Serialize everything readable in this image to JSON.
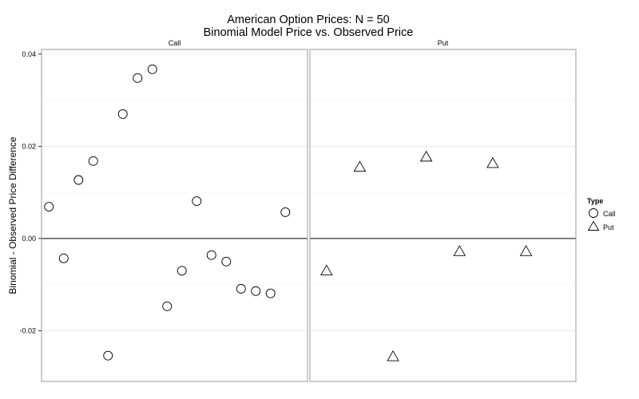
{
  "chart_data": {
    "type": "scatter",
    "title": "American Option Prices: N = 50",
    "subtitle": "Binomial Model Price vs. Observed Price",
    "ylabel": "Binomial - Observed Price Difference",
    "xlabel": "",
    "ylim": [
      -0.031,
      0.041
    ],
    "yticks": [
      -0.02,
      0.0,
      0.02,
      0.04
    ],
    "ytick_labels": [
      "-0.02",
      "0.00",
      "0.02",
      "0.04"
    ],
    "hline": 0,
    "grid": true,
    "legend": {
      "title": "Type",
      "placement": "right",
      "entries": [
        {
          "label": "Call",
          "shape": "circle"
        },
        {
          "label": "Put",
          "shape": "triangle"
        }
      ]
    },
    "panels": [
      {
        "strip": "Call",
        "shape": "circle",
        "xlim": [
          0.5,
          18.5
        ],
        "points": [
          {
            "x": 1,
            "y": 0.0069
          },
          {
            "x": 2,
            "y": -0.0043
          },
          {
            "x": 3,
            "y": 0.0127
          },
          {
            "x": 4,
            "y": 0.0168
          },
          {
            "x": 5,
            "y": -0.0254
          },
          {
            "x": 6,
            "y": 0.027
          },
          {
            "x": 7,
            "y": 0.0348
          },
          {
            "x": 8,
            "y": 0.0367
          },
          {
            "x": 9,
            "y": -0.0147
          },
          {
            "x": 10,
            "y": -0.007
          },
          {
            "x": 11,
            "y": 0.0081
          },
          {
            "x": 12,
            "y": -0.0036
          },
          {
            "x": 13,
            "y": -0.005
          },
          {
            "x": 14,
            "y": -0.0109
          },
          {
            "x": 15,
            "y": -0.0114
          },
          {
            "x": 16,
            "y": -0.0119
          },
          {
            "x": 17,
            "y": 0.0057
          }
        ]
      },
      {
        "strip": "Put",
        "shape": "triangle",
        "xlim": [
          0.5,
          8.5
        ],
        "points": [
          {
            "x": 1,
            "y": -0.007
          },
          {
            "x": 2,
            "y": 0.0155
          },
          {
            "x": 3,
            "y": -0.0256
          },
          {
            "x": 4,
            "y": 0.0177
          },
          {
            "x": 5,
            "y": -0.0028
          },
          {
            "x": 6,
            "y": 0.0163
          },
          {
            "x": 7,
            "y": -0.0028
          }
        ]
      }
    ]
  }
}
